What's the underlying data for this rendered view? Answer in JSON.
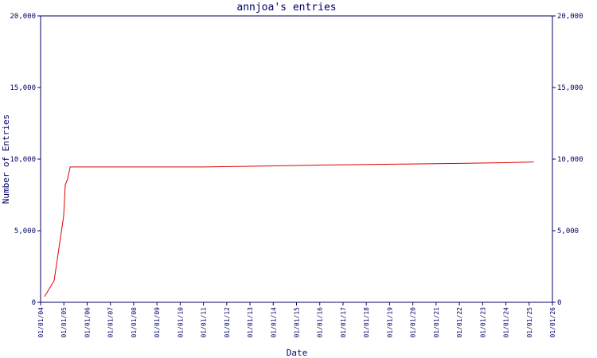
{
  "chart_data": {
    "type": "line",
    "title": "annjoa's entries",
    "x_label": "Date",
    "y_label": "Number of Entries",
    "color": "#dd0000",
    "x": [
      2004.17,
      2004.58,
      2004.99,
      2005.06,
      2005.16,
      2005.27,
      2011.0,
      2013.0,
      2016.0,
      2019.5,
      2022.0,
      2024.0,
      2025.2
    ],
    "values": [
      400,
      1500,
      6000,
      8200,
      8600,
      9450,
      9450,
      9500,
      9580,
      9650,
      9700,
      9750,
      9800
    ],
    "xlim": [
      2004,
      2026
    ],
    "xticks": [
      {
        "value": 2004,
        "label": "01/01/04"
      },
      {
        "value": 2005,
        "label": "01/01/05"
      },
      {
        "value": 2006,
        "label": "01/01/06"
      },
      {
        "value": 2007,
        "label": "01/01/07"
      },
      {
        "value": 2008,
        "label": "01/01/08"
      },
      {
        "value": 2009,
        "label": "01/01/09"
      },
      {
        "value": 2010,
        "label": "01/01/10"
      },
      {
        "value": 2011,
        "label": "01/01/11"
      },
      {
        "value": 2012,
        "label": "01/01/12"
      },
      {
        "value": 2013,
        "label": "01/01/13"
      },
      {
        "value": 2014,
        "label": "01/01/14"
      },
      {
        "value": 2015,
        "label": "01/01/15"
      },
      {
        "value": 2016,
        "label": "01/01/16"
      },
      {
        "value": 2017,
        "label": "01/01/17"
      },
      {
        "value": 2018,
        "label": "01/01/18"
      },
      {
        "value": 2019,
        "label": "01/01/19"
      },
      {
        "value": 2020,
        "label": "01/01/20"
      },
      {
        "value": 2021,
        "label": "01/01/21"
      },
      {
        "value": 2022,
        "label": "01/01/22"
      },
      {
        "value": 2023,
        "label": "01/01/23"
      },
      {
        "value": 2024,
        "label": "01/01/24"
      },
      {
        "value": 2025,
        "label": "01/01/25"
      },
      {
        "value": 2026,
        "label": "01/01/26"
      }
    ],
    "ylim": [
      0,
      20000
    ],
    "yticks": [
      0,
      {
        "value": 5000,
        "label": "5,000"
      },
      {
        "value": 10000,
        "label": "10,000"
      },
      {
        "value": 15000,
        "label": "15,000"
      },
      {
        "value": 20000,
        "label": "20,000"
      }
    ],
    "y2lim": [
      0,
      20000
    ],
    "y2ticks": [
      0,
      {
        "value": 5000,
        "label": "5,000"
      },
      {
        "value": 10000,
        "label": "10,000"
      },
      {
        "value": 15000,
        "label": "15,000"
      },
      {
        "value": 20000,
        "label": "20,000"
      }
    ]
  }
}
